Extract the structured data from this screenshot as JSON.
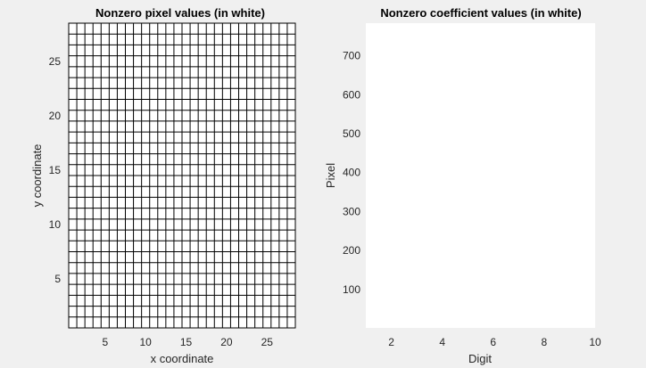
{
  "chart_data": [
    {
      "type": "heatmap",
      "title": "Nonzero pixel values (in white)",
      "xlabel": "x coordinate",
      "ylabel": "y coordinate",
      "xlim": [
        0.5,
        28.5
      ],
      "ylim": [
        0.5,
        28.5
      ],
      "rows": 28,
      "cols": 28,
      "x_ticks": [
        5,
        10,
        15,
        20,
        25
      ],
      "y_ticks": [
        5,
        10,
        15,
        20,
        25
      ],
      "y_direction": "normal",
      "nonzero_cells": [],
      "background_color": "#ffffff",
      "grid_color": "#000000",
      "grid": true
    },
    {
      "type": "heatmap",
      "title": "Nonzero coefficient values (in white)",
      "xlabel": "Digit",
      "ylabel": "Pixel",
      "xlim": [
        1,
        10
      ],
      "ylim": [
        1,
        784
      ],
      "x_ticks": [
        2,
        4,
        6,
        8,
        10
      ],
      "y_ticks": [
        100,
        200,
        300,
        400,
        500,
        600,
        700
      ],
      "y_direction": "normal",
      "nonzero_cells": [],
      "background_color": "#ffffff",
      "grid": false
    }
  ]
}
